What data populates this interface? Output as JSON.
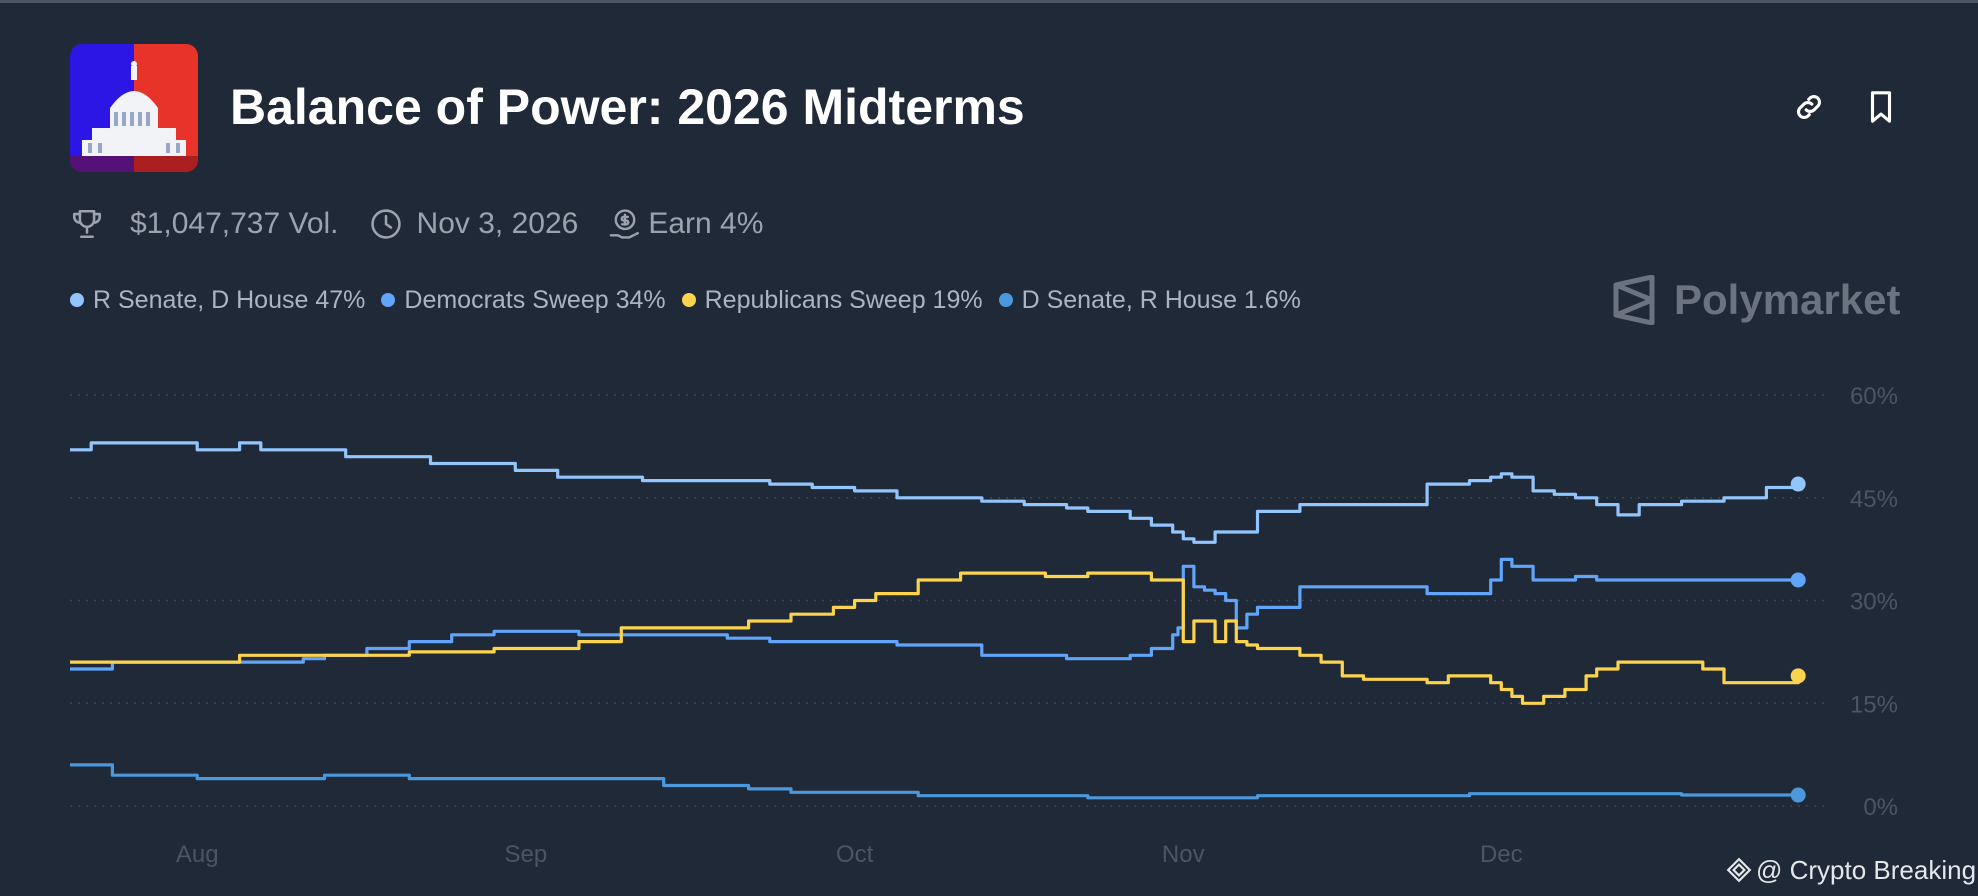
{
  "header": {
    "title": "Balance of Power: 2026 Midterms",
    "logo_icon": "capitol-icon",
    "actions": [
      {
        "name": "copy-link-button",
        "icon": "link-icon"
      },
      {
        "name": "bookmark-button",
        "icon": "bookmark-icon"
      }
    ]
  },
  "meta": {
    "volume": "$1,047,737 Vol.",
    "end_date": "Nov 3, 2026",
    "earn": "Earn 4%"
  },
  "legend": [
    {
      "label": "R Senate, D House 47%",
      "color": "#93c5fd"
    },
    {
      "label": "Democrats Sweep 34%",
      "color": "#60a5fa"
    },
    {
      "label": "Republicans Sweep 19%",
      "color": "#fcd34d"
    },
    {
      "label": "D Senate, R House 1.6%",
      "color": "#4b98dc"
    }
  ],
  "brand": "Polymarket",
  "credit": "@ Crypto Breaking",
  "chart_data": {
    "type": "line",
    "title": "Balance of Power: 2026 Midterms",
    "xlabel": "",
    "ylabel": "",
    "x_ticks": [
      "Aug",
      "Sep",
      "Oct",
      "Nov",
      "Dec"
    ],
    "x_tick_positions": [
      4,
      35,
      66,
      97,
      127
    ],
    "xlim": [
      -8,
      158
    ],
    "ylim": [
      0,
      60
    ],
    "y_ticks": [
      "0%",
      "15%",
      "30%",
      "45%",
      "60%"
    ],
    "y_tick_values": [
      0,
      15,
      30,
      45,
      60
    ],
    "grid": true,
    "series": [
      {
        "name": "R Senate, D House",
        "color": "#93c5fd",
        "x": [
          -8,
          -6,
          -4,
          0,
          4,
          6,
          8,
          10,
          14,
          18,
          22,
          26,
          30,
          34,
          38,
          42,
          46,
          50,
          54,
          58,
          62,
          66,
          70,
          74,
          78,
          82,
          86,
          88,
          90,
          92,
          94,
          95,
          96,
          97,
          98,
          100,
          104,
          108,
          112,
          116,
          120,
          124,
          126,
          127,
          128,
          130,
          132,
          134,
          136,
          138,
          140,
          144,
          148,
          152,
          155
        ],
        "values": [
          52,
          53,
          53,
          53,
          52,
          52,
          53,
          52,
          52,
          51,
          51,
          50,
          50,
          49,
          48,
          48,
          47.5,
          47.5,
          47.5,
          47,
          46.5,
          46,
          45,
          45,
          44.5,
          44,
          43.5,
          43,
          43,
          42,
          41,
          41,
          40,
          39,
          38.5,
          40,
          43,
          44,
          44,
          44,
          47,
          47.5,
          48,
          48.5,
          48,
          46,
          45.5,
          45,
          44,
          42.5,
          44,
          44.5,
          45,
          46.5,
          47
        ]
      },
      {
        "name": "Democrats Sweep",
        "color": "#60a5fa",
        "x": [
          -8,
          -4,
          0,
          4,
          8,
          12,
          14,
          16,
          18,
          20,
          24,
          28,
          32,
          36,
          40,
          44,
          48,
          50,
          54,
          58,
          62,
          66,
          70,
          74,
          78,
          82,
          86,
          90,
          92,
          94,
          96,
          96.5,
          97,
          98,
          99,
          100,
          101,
          102,
          103,
          104,
          106,
          108,
          112,
          116,
          120,
          124,
          126,
          127,
          128,
          130,
          132,
          134,
          136,
          140,
          144,
          148,
          152,
          155
        ],
        "values": [
          20,
          21,
          21,
          21,
          21,
          21,
          21.5,
          22,
          22,
          23,
          24,
          25,
          25.5,
          25.5,
          25,
          25,
          25,
          25,
          24.5,
          24,
          24,
          24,
          23.5,
          23.5,
          22,
          22,
          21.5,
          21.5,
          22,
          23,
          25,
          26,
          35,
          32,
          31.5,
          31,
          30,
          26,
          28,
          29,
          29,
          32,
          32,
          32,
          31,
          31,
          33,
          36,
          35,
          33,
          33,
          33.5,
          33,
          33,
          33,
          33,
          33,
          33
        ]
      },
      {
        "name": "Republicans Sweep",
        "color": "#fcd34d",
        "x": [
          -8,
          -4,
          0,
          4,
          8,
          12,
          16,
          20,
          24,
          28,
          32,
          36,
          40,
          44,
          48,
          52,
          56,
          60,
          64,
          66,
          68,
          72,
          76,
          80,
          84,
          88,
          90,
          92,
          94,
          96,
          96.5,
          97,
          98,
          99,
          100,
          101,
          102,
          103,
          104,
          106,
          108,
          110,
          112,
          114,
          116,
          118,
          120,
          122,
          124,
          126,
          127,
          128,
          129,
          130,
          131,
          132,
          133,
          134,
          135,
          136,
          138,
          140,
          144,
          146,
          148,
          150,
          152,
          155
        ],
        "values": [
          21,
          21,
          21,
          21,
          22,
          22,
          22,
          22,
          22.5,
          22.5,
          23,
          23,
          24,
          26,
          26,
          26,
          27,
          28,
          29,
          30,
          31,
          33,
          34,
          34,
          33.5,
          34,
          34,
          34,
          33,
          33,
          33,
          24,
          27,
          27,
          24,
          27,
          24,
          23.5,
          23,
          23,
          22,
          21,
          19,
          18.5,
          18.5,
          18.5,
          18,
          19,
          19,
          18,
          17,
          16,
          15,
          15,
          16,
          16,
          17,
          17,
          19,
          20,
          21,
          21,
          21,
          20,
          18,
          18,
          18,
          19
        ]
      },
      {
        "name": "D Senate, R House",
        "color": "#4b98dc",
        "x": [
          -8,
          -6,
          -4,
          0,
          4,
          8,
          12,
          16,
          20,
          24,
          28,
          32,
          36,
          40,
          44,
          48,
          52,
          56,
          60,
          64,
          68,
          72,
          76,
          80,
          84,
          88,
          92,
          96,
          100,
          104,
          108,
          112,
          116,
          120,
          124,
          128,
          132,
          136,
          140,
          144,
          148,
          152,
          155
        ],
        "values": [
          6,
          6,
          4.5,
          4.5,
          4,
          4,
          4,
          4.5,
          4.5,
          4,
          4,
          4,
          4,
          4,
          4,
          3,
          3,
          2.5,
          2,
          2,
          2,
          1.5,
          1.5,
          1.5,
          1.5,
          1.2,
          1.2,
          1.2,
          1.2,
          1.5,
          1.5,
          1.5,
          1.5,
          1.5,
          1.8,
          1.8,
          1.8,
          1.8,
          1.8,
          1.6,
          1.6,
          1.6,
          1.6
        ]
      }
    ]
  }
}
